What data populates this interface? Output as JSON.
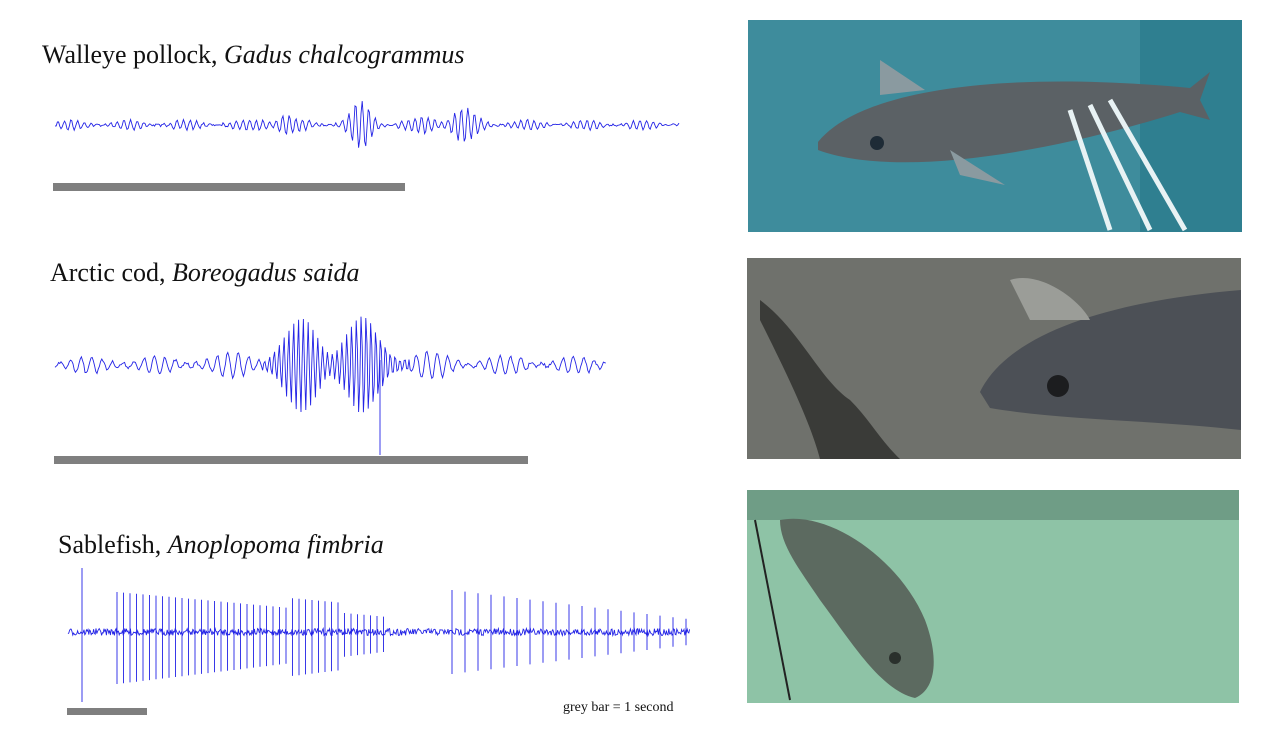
{
  "panels": [
    {
      "common": "Walleye pollock, ",
      "scientific": "Gadus chalcogrammus"
    },
    {
      "common": "Arctic cod, ",
      "scientific": "Boreogadus saida"
    },
    {
      "common": "Sablefish, ",
      "scientific": "Anoplopoma fimbria"
    }
  ],
  "caption": "grey bar = 1 second"
}
